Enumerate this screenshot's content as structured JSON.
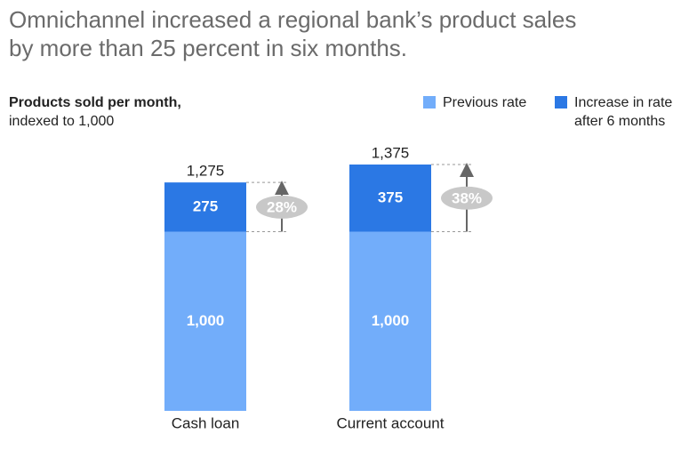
{
  "chart_data": {
    "type": "stacked-bar",
    "title": [
      "Omnichannel increased a regional bank’s product sales",
      "by more than 25 percent in six months."
    ],
    "subtitle": [
      "Products sold per month,",
      "indexed to 1,000"
    ],
    "categories": [
      "Cash loan",
      "Current account"
    ],
    "series": [
      {
        "name": "Previous rate",
        "color": "#72adfa",
        "values": [
          1000,
          1000
        ],
        "value_labels": [
          "1,000",
          "1,000"
        ]
      },
      {
        "name": "Increase in rate after 6 months",
        "color": "#2b78e4",
        "values": [
          275,
          375
        ]
      }
    ],
    "totals": [
      1275,
      1375
    ],
    "total_labels": [
      "1,275",
      "1,375"
    ],
    "growth_values": [
      28,
      38
    ],
    "growth_labels": [
      "28%",
      "38%"
    ]
  }
}
